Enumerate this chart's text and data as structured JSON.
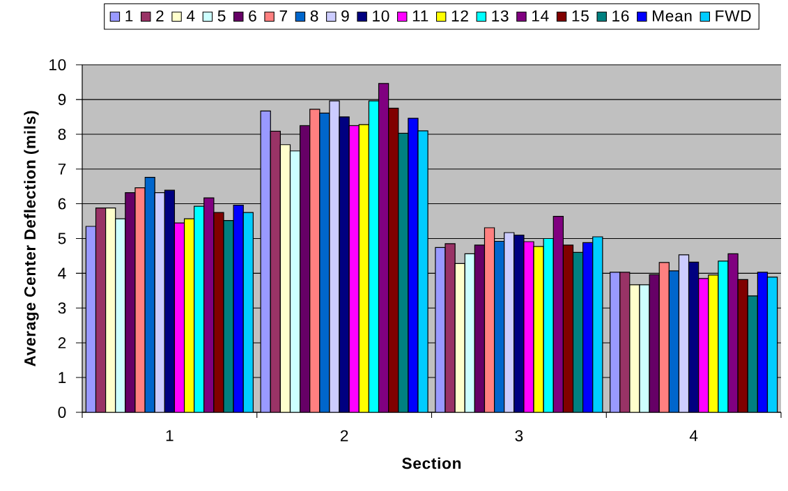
{
  "chart_data": {
    "type": "bar",
    "xlabel": "Section",
    "ylabel": "Average Center Deflection (mils)",
    "categories": [
      "1",
      "2",
      "3",
      "4"
    ],
    "series": [
      {
        "name": "1",
        "color": "#9999ff",
        "values": [
          5.35,
          8.67,
          4.74,
          4.03
        ]
      },
      {
        "name": "2",
        "color": "#993366",
        "values": [
          5.88,
          8.09,
          4.85,
          4.03
        ]
      },
      {
        "name": "4",
        "color": "#ffffcc",
        "values": [
          5.88,
          7.7,
          4.28,
          3.67
        ]
      },
      {
        "name": "5",
        "color": "#ccffff",
        "values": [
          5.57,
          7.52,
          4.56,
          3.67
        ]
      },
      {
        "name": "6",
        "color": "#660066",
        "values": [
          6.32,
          8.25,
          4.81,
          3.96
        ]
      },
      {
        "name": "7",
        "color": "#ff8080",
        "values": [
          6.46,
          8.72,
          5.31,
          4.31
        ]
      },
      {
        "name": "8",
        "color": "#0066cc",
        "values": [
          6.76,
          8.61,
          4.92,
          4.07
        ]
      },
      {
        "name": "9",
        "color": "#ccccff",
        "values": [
          6.32,
          8.96,
          5.17,
          4.53
        ]
      },
      {
        "name": "10",
        "color": "#000080",
        "values": [
          6.39,
          8.5,
          5.1,
          4.32
        ]
      },
      {
        "name": "11",
        "color": "#ff00ff",
        "values": [
          5.45,
          8.25,
          4.91,
          3.85
        ]
      },
      {
        "name": "12",
        "color": "#ffff00",
        "values": [
          5.57,
          8.28,
          4.77,
          3.95
        ]
      },
      {
        "name": "13",
        "color": "#00ffff",
        "values": [
          5.93,
          8.96,
          5.0,
          4.35
        ]
      },
      {
        "name": "14",
        "color": "#800080",
        "values": [
          6.17,
          9.46,
          5.64,
          4.56
        ]
      },
      {
        "name": "15",
        "color": "#800000",
        "values": [
          5.75,
          8.75,
          4.81,
          3.82
        ]
      },
      {
        "name": "16",
        "color": "#008080",
        "values": [
          5.52,
          8.03,
          4.6,
          3.35
        ]
      },
      {
        "name": "Mean",
        "color": "#0000ff",
        "values": [
          5.96,
          8.46,
          4.88,
          4.03
        ]
      },
      {
        "name": "FWD",
        "color": "#00ccff",
        "values": [
          5.75,
          8.1,
          5.05,
          3.89
        ]
      }
    ],
    "ylim": [
      0,
      10
    ],
    "yticks": [
      0,
      1,
      2,
      3,
      4,
      5,
      6,
      7,
      8,
      9,
      10
    ],
    "grid": "y",
    "legend": "top"
  }
}
